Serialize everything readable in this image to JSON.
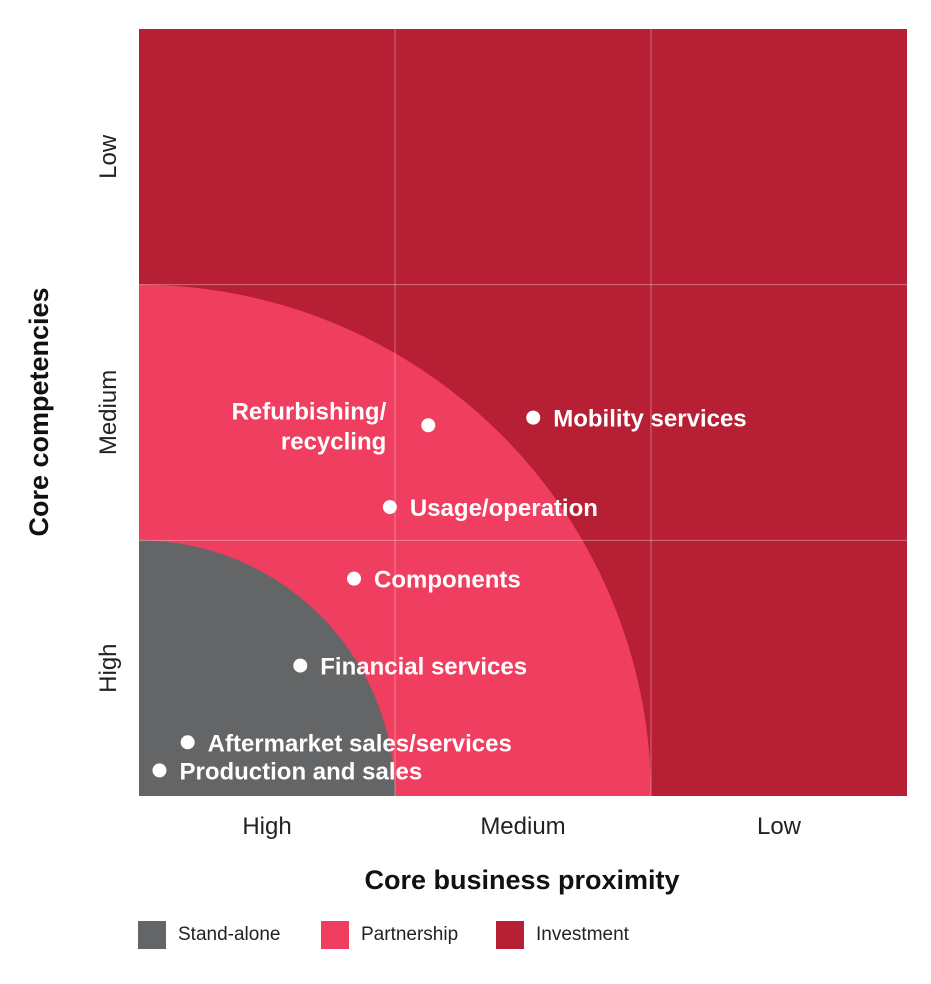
{
  "chart_data": {
    "type": "scatter",
    "xlabel": "Core business proximity",
    "ylabel": "Core competencies",
    "x_categories": [
      "High",
      "Medium",
      "Low"
    ],
    "y_categories": [
      "High",
      "Medium",
      "Low"
    ],
    "xlim": [
      0,
      3
    ],
    "ylim": [
      0,
      3
    ],
    "regions": [
      {
        "name": "Investment",
        "color": "#b72034",
        "shape": "background"
      },
      {
        "name": "Partnership",
        "color": "#ef3e5f",
        "shape": "quarter-circle",
        "radius": 2.0
      },
      {
        "name": "Stand-alone",
        "color": "#646566",
        "shape": "quarter-circle",
        "radius": 1.0
      }
    ],
    "points": [
      {
        "label": "Refurbishing/\nrecycling",
        "x": 1.13,
        "y": 1.45,
        "label_side": "left"
      },
      {
        "label": "Mobility services",
        "x": 1.54,
        "y": 1.48,
        "label_side": "right"
      },
      {
        "label": "Usage/operation",
        "x": 0.98,
        "y": 1.13,
        "label_side": "right"
      },
      {
        "label": "Components",
        "x": 0.84,
        "y": 0.85,
        "label_side": "right"
      },
      {
        "label": "Financial services",
        "x": 0.63,
        "y": 0.51,
        "label_side": "right"
      },
      {
        "label": "Aftermarket sales/services",
        "x": 0.19,
        "y": 0.21,
        "label_side": "right"
      },
      {
        "label": "Production and sales",
        "x": 0.08,
        "y": 0.1,
        "label_side": "right"
      }
    ]
  },
  "legend": [
    {
      "label": "Stand-alone",
      "color": "#646566"
    },
    {
      "label": "Partnership",
      "color": "#ef3e5f"
    },
    {
      "label": "Investment",
      "color": "#b72034"
    }
  ]
}
